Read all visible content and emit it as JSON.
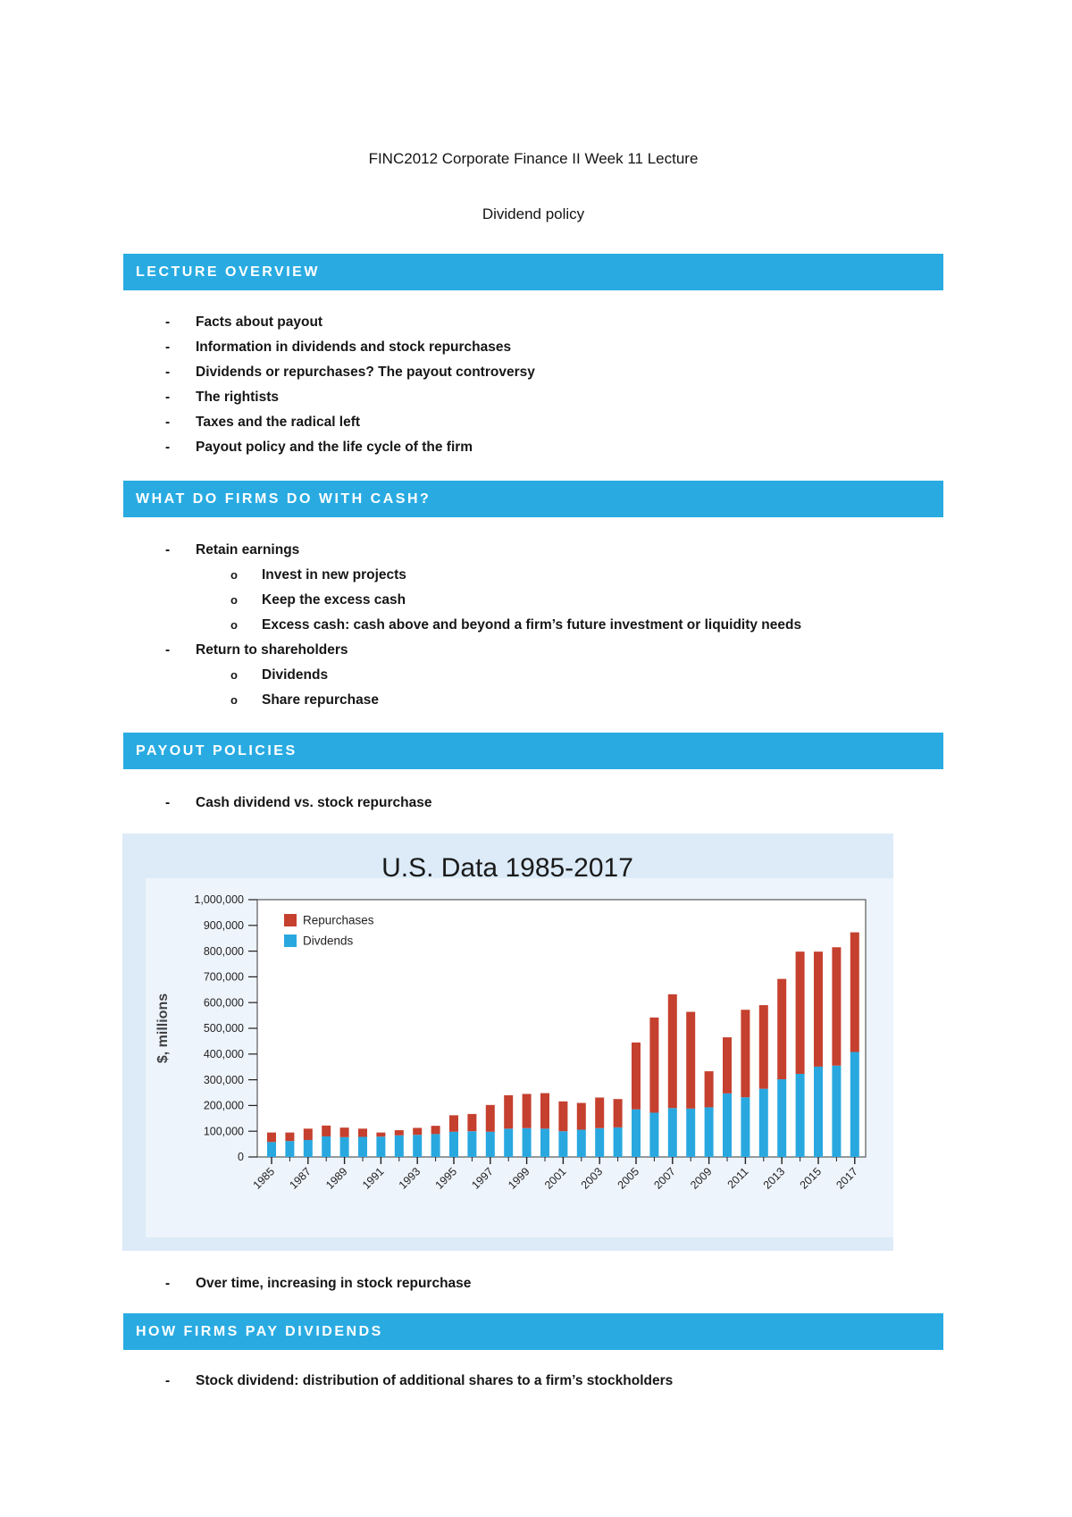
{
  "theme": {
    "heading_bg": "#29abe2",
    "heading_text": "#ffffff",
    "chart_panel_bg": "#dcebf7",
    "chart_inner_bg": "#edf4fb",
    "repurchases_color": "#c5402e",
    "dividends_color": "#29a8e0"
  },
  "markers": {
    "dash": "-",
    "circle": "o"
  },
  "doc": {
    "title": "FINC2012 Corporate Finance II Week 11 Lecture",
    "subtitle": "Dividend policy"
  },
  "sections": [
    {
      "heading": "LECTURE OVERVIEW",
      "bullets": [
        "Facts about payout",
        "Information in dividends and stock repurchases",
        "Dividends or repurchases? The payout controversy",
        "The rightists",
        "Taxes and the radical left",
        "Payout policy and the life cycle of the firm"
      ]
    },
    {
      "heading": "WHAT DO FIRMS DO WITH CASH?",
      "items": [
        {
          "level": 1,
          "text": "Retain earnings"
        },
        {
          "level": 2,
          "text": "Invest in new projects"
        },
        {
          "level": 2,
          "text": "Keep the excess cash"
        },
        {
          "level": 2,
          "text": "Excess cash: cash above and beyond a firm’s future investment or liquidity needs"
        },
        {
          "level": 1,
          "text": "Return to shareholders"
        },
        {
          "level": 2,
          "text": "Dividends"
        },
        {
          "level": 2,
          "text": "Share repurchase"
        }
      ]
    },
    {
      "heading": "PAYOUT POLICIES",
      "bullets": [
        "Cash dividend vs. stock repurchase"
      ],
      "bullets_after_chart": [
        "Over time, increasing in stock repurchase"
      ]
    },
    {
      "heading": "HOW FIRMS PAY DIVIDENDS",
      "bullets": [
        "Stock dividend: distribution of additional shares to a firm’s stockholders"
      ]
    }
  ],
  "chart_data": {
    "type": "bar",
    "stacked": true,
    "title": "U.S. Data 1985-2017",
    "xlabel": "",
    "ylabel": "$, millions",
    "ylim": [
      0,
      1000000
    ],
    "ytick_step": 100000,
    "ytick_labels": [
      "0",
      "100,000",
      "200,000",
      "300,000",
      "400,000",
      "500,000",
      "600,000",
      "700,000",
      "800,000",
      "900,000",
      "1,000,000"
    ],
    "categories": [
      1985,
      1986,
      1987,
      1988,
      1989,
      1990,
      1991,
      1992,
      1993,
      1994,
      1995,
      1996,
      1997,
      1998,
      1999,
      2000,
      2001,
      2002,
      2003,
      2004,
      2005,
      2006,
      2007,
      2008,
      2009,
      2010,
      2011,
      2012,
      2013,
      2014,
      2015,
      2016,
      2017
    ],
    "xtick_labels": [
      "1985",
      "1987",
      "1989",
      "1991",
      "1993",
      "1995",
      "1997",
      "1999",
      "2001",
      "2003",
      "2005",
      "2007",
      "2009",
      "2011",
      "2013",
      "2015",
      "2017"
    ],
    "legend_position": "top-left",
    "grid": false,
    "series": [
      {
        "name": "Repurchases",
        "color": "#c5402e",
        "values": [
          37000,
          33000,
          44000,
          42000,
          37000,
          32000,
          16000,
          20000,
          27000,
          32000,
          64000,
          67000,
          104000,
          130000,
          133000,
          138000,
          116000,
          104000,
          119000,
          110000,
          260000,
          370000,
          442000,
          376000,
          140000,
          218000,
          340000,
          325000,
          390000,
          475000,
          447000,
          460000,
          465000
        ]
      },
      {
        "name": "Divdends",
        "color": "#29a8e0",
        "values": [
          58000,
          62000,
          66000,
          80000,
          77000,
          78000,
          79000,
          84000,
          86000,
          89000,
          98000,
          100000,
          98000,
          110000,
          112000,
          110000,
          100000,
          106000,
          112000,
          115000,
          185000,
          172000,
          190000,
          188000,
          193000,
          247000,
          232000,
          265000,
          302000,
          323000,
          351000,
          355000,
          408000
        ]
      }
    ]
  }
}
